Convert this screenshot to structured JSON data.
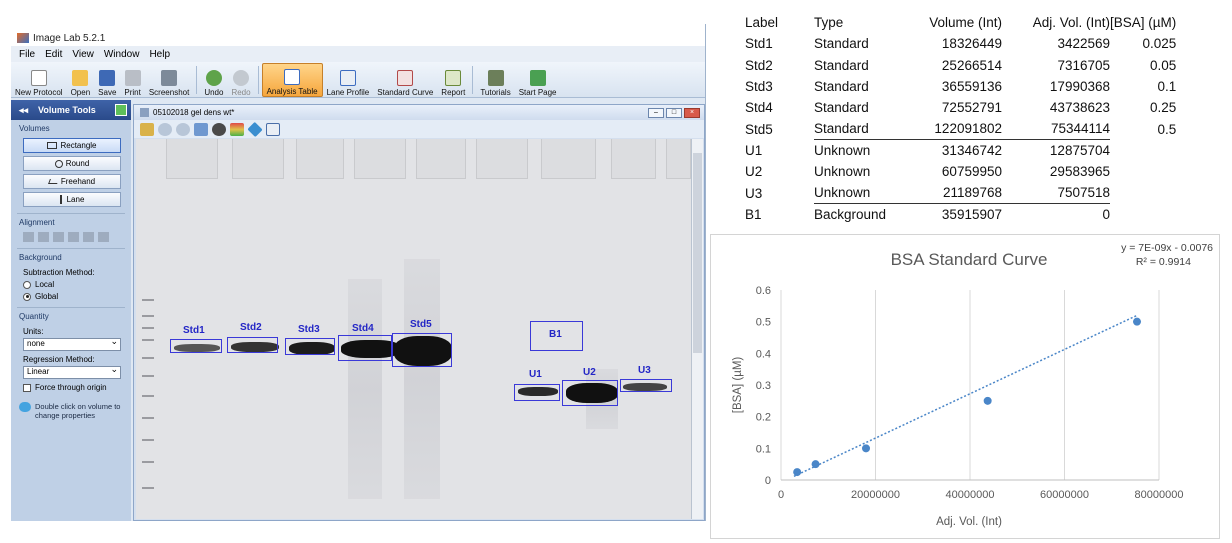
{
  "app": {
    "title": "Image Lab 5.2.1",
    "menu": [
      "File",
      "Edit",
      "View",
      "Window",
      "Help"
    ],
    "toolbar": [
      {
        "label": "New Protocol",
        "icon": "new-protocol-icon"
      },
      {
        "label": "Open",
        "icon": "open-folder-icon"
      },
      {
        "label": "Save",
        "icon": "save-icon"
      },
      {
        "label": "Print",
        "icon": "print-icon"
      },
      {
        "label": "Screenshot",
        "icon": "camera-icon"
      },
      {
        "label": "Undo",
        "icon": "undo-icon"
      },
      {
        "label": "Redo",
        "icon": "redo-icon"
      },
      {
        "label": "Analysis Table",
        "icon": "table-icon"
      },
      {
        "label": "Lane Profile",
        "icon": "lane-profile-icon"
      },
      {
        "label": "Standard Curve",
        "icon": "standard-curve-icon"
      },
      {
        "label": "Report",
        "icon": "report-icon"
      },
      {
        "label": "Tutorials",
        "icon": "tutorials-icon"
      },
      {
        "label": "Start Page",
        "icon": "start-page-icon"
      }
    ],
    "active_tool": "Analysis Table"
  },
  "panel": {
    "title": "Volume Tools",
    "back_glyph": "◂◂",
    "volumes_label": "Volumes",
    "volume_buttons": [
      "Rectangle",
      "Round",
      "Freehand",
      "Lane"
    ],
    "alignment_label": "Alignment",
    "background_label": "Background",
    "subtraction_label": "Subtraction Method:",
    "subtraction_options": [
      "Local",
      "Global"
    ],
    "subtraction_selected": "Global",
    "quantity_label": "Quantity",
    "units_label": "Units:",
    "units_value": "none",
    "regression_label": "Regression Method:",
    "regression_value": "Linear",
    "force_origin_label": "Force through origin",
    "hint": "Double click on volume to change properties"
  },
  "document": {
    "title": "05102018 gel dens wt*",
    "volumes": [
      "Std1",
      "Std2",
      "Std3",
      "Std4",
      "Std5",
      "B1",
      "U1",
      "U2",
      "U3"
    ]
  },
  "table": {
    "headers": [
      "Label",
      "Type",
      "Volume (Int)",
      "Adj. Vol. (Int)",
      "[BSA] (µM)"
    ],
    "rows": [
      [
        "Std1",
        "Standard",
        "18326449",
        "3422569",
        "0.025"
      ],
      [
        "Std2",
        "Standard",
        "25266514",
        "7316705",
        "0.05"
      ],
      [
        "Std3",
        "Standard",
        "36559136",
        "17990368",
        "0.1"
      ],
      [
        "Std4",
        "Standard",
        "72552791",
        "43738623",
        "0.25"
      ],
      [
        "Std5",
        "Standard",
        "122091802",
        "75344114",
        "0.5"
      ],
      [
        "U1",
        "Unknown",
        "31346742",
        "12875704",
        ""
      ],
      [
        "U2",
        "Unknown",
        "60759950",
        "29583965",
        ""
      ],
      [
        "U3",
        "Unknown",
        "21189768",
        "7507518",
        ""
      ],
      [
        "B1",
        "Background",
        "35915907",
        "0",
        ""
      ]
    ]
  },
  "chart_data": {
    "type": "scatter",
    "title": "BSA Standard Curve",
    "xlabel": "Adj. Vol. (Int)",
    "ylabel": "[BSA] (µM)",
    "xlim": [
      0,
      80000000
    ],
    "ylim": [
      0,
      0.6
    ],
    "x_ticks": [
      "0",
      "20000000",
      "40000000",
      "60000000",
      "80000000"
    ],
    "y_ticks": [
      "0",
      "0.1",
      "0.2",
      "0.3",
      "0.4",
      "0.5",
      "0.6"
    ],
    "grid": "vertical",
    "series": [
      {
        "points": [
          [
            3422569,
            0.025
          ],
          [
            7316705,
            0.05
          ],
          [
            17990368,
            0.1
          ],
          [
            43738623,
            0.25
          ],
          [
            75344114,
            0.5
          ]
        ],
        "color": "#4a86c8"
      }
    ],
    "trendline": {
      "equation": "y = 7E-09x - 0.0076",
      "r2": "R² = 0.9914",
      "slope": 7e-09,
      "intercept": -0.0076,
      "color": "#4a86c8"
    }
  }
}
